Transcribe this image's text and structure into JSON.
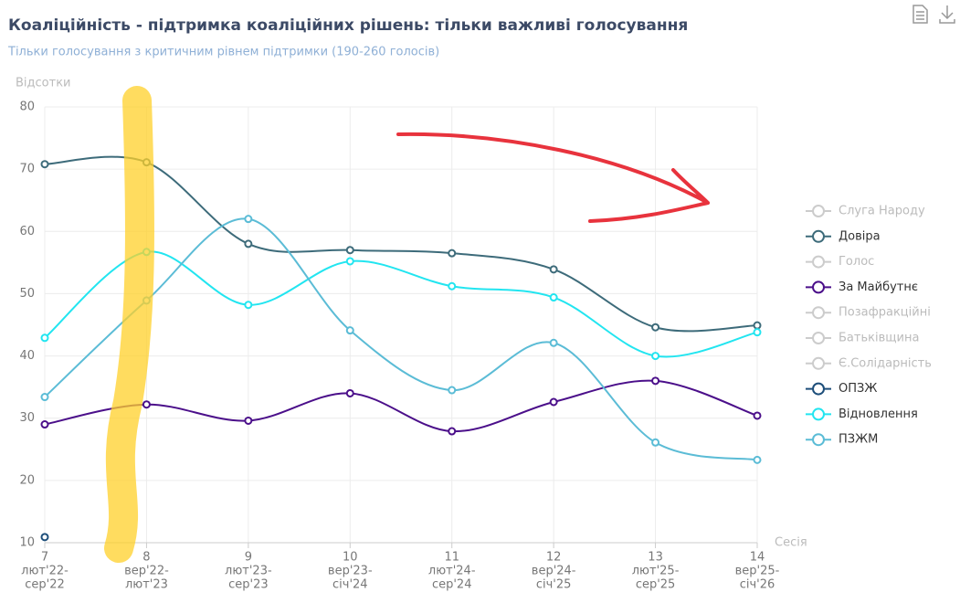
{
  "chart_data": {
    "type": "line",
    "title": "Коаліційність - підтримка коаліційних рішень: тільки важливі голосування",
    "subtitle": "Тільки голосування з критичним рівнем підтримки (190-260 голосів)",
    "y_label": "Відсотки",
    "x_label": "Сесія",
    "categories": [
      "7",
      "8",
      "9",
      "10",
      "11",
      "12",
      "13",
      "14"
    ],
    "category_periods": [
      [
        "лют'22-",
        "сер'22"
      ],
      [
        "вер'22-",
        "лют'23"
      ],
      [
        "лют'23-",
        "сер'23"
      ],
      [
        "вер'23-",
        "січ'24"
      ],
      [
        "лют'24-",
        "сер'24"
      ],
      [
        "вер'24-",
        "січ'25"
      ],
      [
        "лют'25-",
        "сер'25"
      ],
      [
        "вер'25-",
        "січ'26"
      ]
    ],
    "ylim": [
      10,
      80
    ],
    "yticks": [
      10,
      20,
      30,
      40,
      50,
      60,
      70,
      80
    ],
    "grid": true,
    "series": [
      {
        "name": "Слуга Народу",
        "color": "#cccccc",
        "visible": false,
        "values": [
          null,
          null,
          null,
          null,
          null,
          null,
          null,
          null
        ]
      },
      {
        "name": "Довіра",
        "color": "#3d6b7a",
        "visible": true,
        "values": [
          70.8,
          71.1,
          58.0,
          57.0,
          56.5,
          53.9,
          44.6,
          44.9
        ]
      },
      {
        "name": "Голос",
        "color": "#cccccc",
        "visible": false,
        "values": [
          null,
          null,
          null,
          null,
          null,
          null,
          null,
          null
        ]
      },
      {
        "name": "За Майбутнє",
        "color": "#4b0f8a",
        "visible": true,
        "values": [
          29.0,
          32.2,
          29.6,
          34.0,
          27.9,
          32.6,
          36.0,
          30.4
        ]
      },
      {
        "name": "Позафракційні",
        "color": "#cccccc",
        "visible": false,
        "values": [
          null,
          null,
          null,
          null,
          null,
          null,
          null,
          null
        ]
      },
      {
        "name": "Батьківщина",
        "color": "#cccccc",
        "visible": false,
        "values": [
          null,
          null,
          null,
          null,
          null,
          null,
          null,
          null
        ]
      },
      {
        "name": "Є.Солідарність",
        "color": "#cccccc",
        "visible": false,
        "values": [
          null,
          null,
          null,
          null,
          null,
          null,
          null,
          null
        ]
      },
      {
        "name": "ОПЗЖ",
        "color": "#1d4e7a",
        "visible": true,
        "values": [
          10.9,
          null,
          null,
          null,
          null,
          null,
          null,
          null
        ]
      },
      {
        "name": "Відновлення",
        "color": "#22e5f0",
        "visible": true,
        "values": [
          42.9,
          56.7,
          48.2,
          55.2,
          51.2,
          49.4,
          40.0,
          43.8
        ]
      },
      {
        "name": "ПЗЖМ",
        "color": "#5bbcd6",
        "visible": true,
        "values": [
          33.4,
          48.9,
          62.0,
          44.1,
          34.5,
          42.1,
          26.1,
          23.3
        ]
      }
    ]
  }
}
